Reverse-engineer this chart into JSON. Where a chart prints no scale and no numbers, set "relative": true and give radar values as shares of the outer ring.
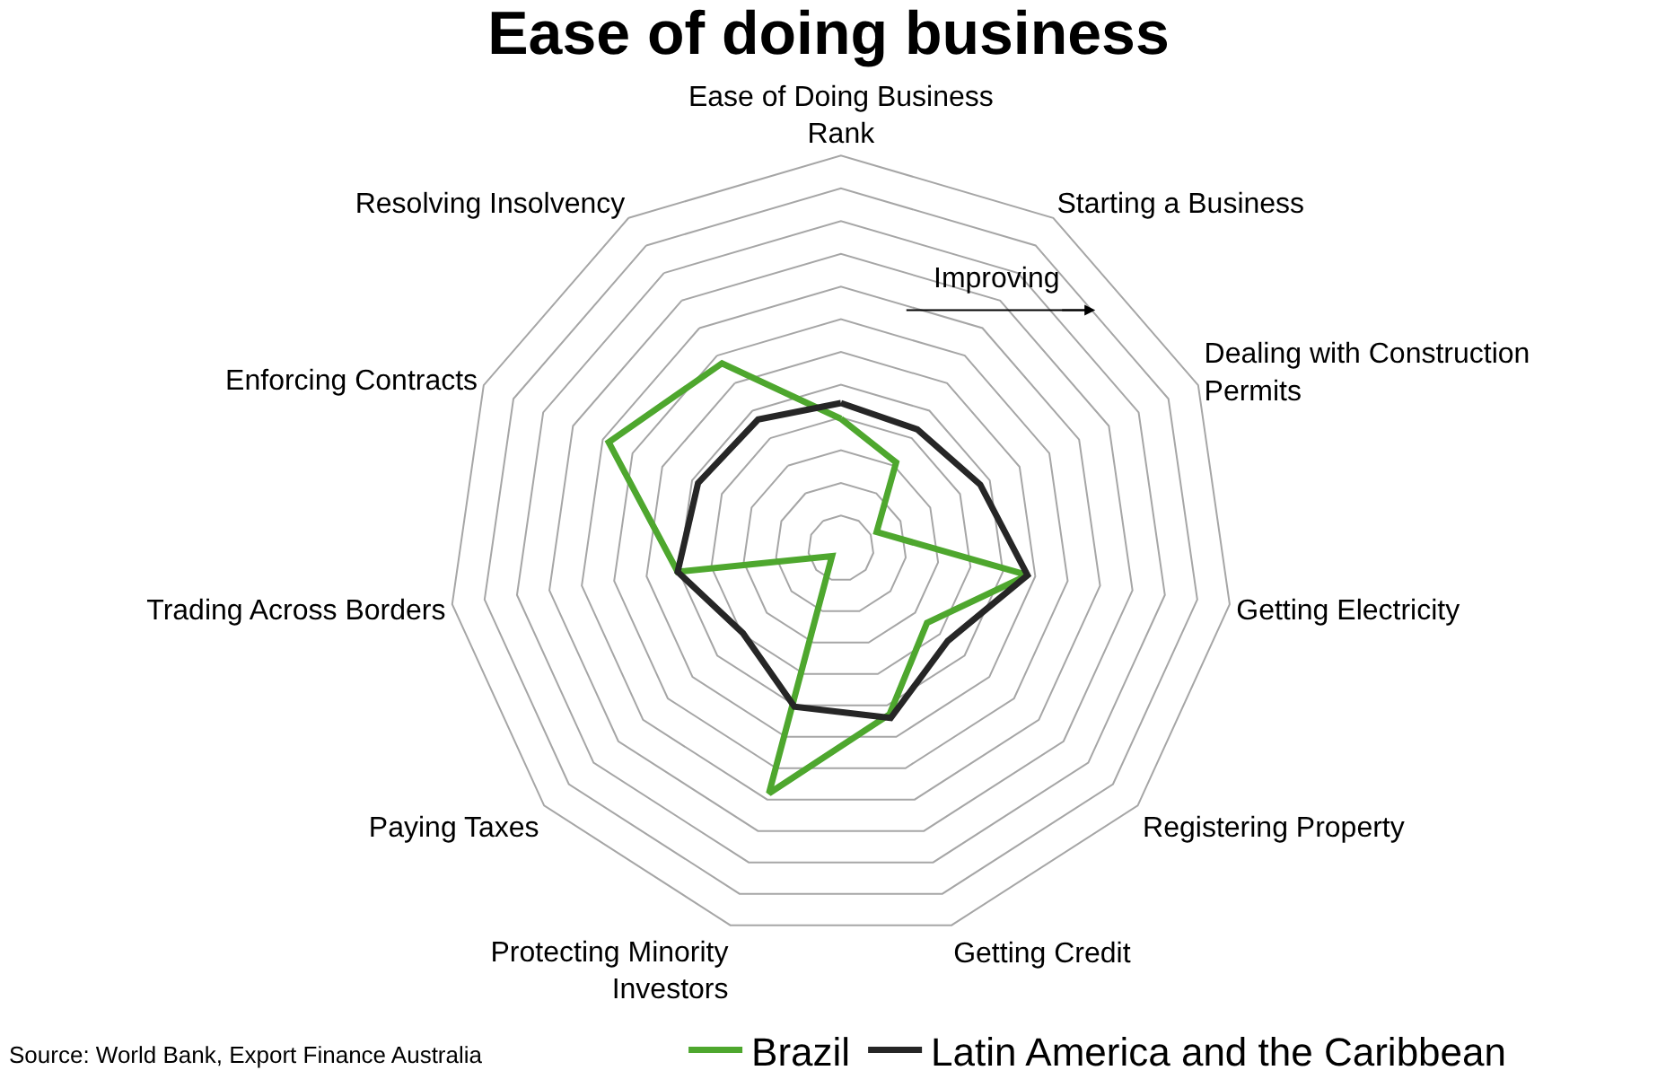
{
  "chart_data": {
    "type": "radar",
    "title": "Ease of doing business",
    "relative": true,
    "grid": true,
    "legend": "bottom right",
    "line_style": "solid",
    "marker": "none",
    "categories": [
      "Ease of Doing Business Rank",
      "Starting a Business",
      "Dealing with Construction Permits",
      "Getting Electricity",
      "Registering Property",
      "Getting Credit",
      "Protecting Minority Investors",
      "Paying Taxes",
      "Trading Across Borders",
      "Enforcing Contracts",
      "Resolving Insolvency"
    ],
    "series": [
      {
        "name": "Brazil",
        "color": "#4ea72e",
        "values": [
          0.33,
          0.26,
          0.1,
          0.48,
          0.29,
          0.44,
          0.65,
          0.03,
          0.42,
          0.65,
          0.56
        ]
      },
      {
        "name": "Latin America and the Caribbean",
        "color": "#262626",
        "values": [
          0.37,
          0.36,
          0.39,
          0.48,
          0.36,
          0.45,
          0.42,
          0.33,
          0.42,
          0.4,
          0.39
        ]
      }
    ],
    "annotations": [
      "Improving",
      "Source: World Bank, Export Finance Australia"
    ]
  }
}
